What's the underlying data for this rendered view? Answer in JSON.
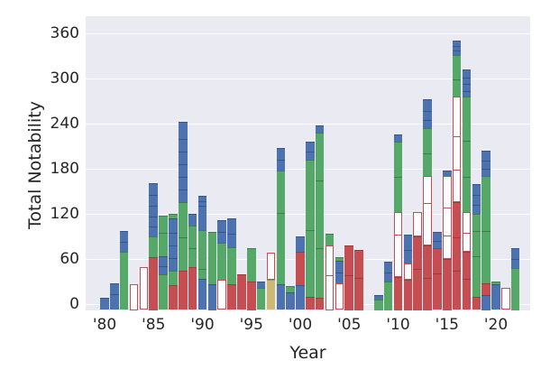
{
  "figure": {
    "xlabel": "Year",
    "ylabel": "Total Notability",
    "background": "#eaeaf2",
    "gridcolor": "#ffffff"
  },
  "palette": {
    "blue": {
      "fill": "#4c72b0",
      "edge": "#39568a"
    },
    "green": {
      "fill": "#55a868",
      "edge": "#40804f"
    },
    "red": {
      "fill": "#c44e52",
      "edge": "#993d40"
    },
    "tan": {
      "fill": "#ccb974",
      "edge": "#a29257"
    },
    "hollow": {
      "fill": "#fdfdff",
      "edge": "#c44e52"
    }
  },
  "chart_data": {
    "type": "bar",
    "subtype": "stacked, segments colored by category (blue / green / red solid, red-outlined hollow, tan)",
    "title": "",
    "xlabel": "Year",
    "ylabel": "Total Notability",
    "ylim": [
      0,
      380
    ],
    "yticks": [
      0,
      60,
      120,
      180,
      240,
      300,
      360
    ],
    "xtick_labels": [
      "'80",
      "'85",
      "'90",
      "'95",
      "'00",
      "'05",
      "'10",
      "'15",
      "'20"
    ],
    "xtick_years": [
      1980,
      1985,
      1990,
      1995,
      2000,
      2005,
      2010,
      2015,
      2020
    ],
    "legend": "none",
    "grid": true,
    "years": [
      {
        "year": 1980,
        "total": 8,
        "segments": [
          {
            "c": "blue",
            "a": 0,
            "b": 8
          }
        ]
      },
      {
        "year": 1981,
        "total": 28,
        "segments": [
          {
            "c": "blue",
            "a": 0,
            "b": 28,
            "d": [
              14
            ]
          }
        ]
      },
      {
        "year": 1982,
        "total": 97,
        "segments": [
          {
            "c": "green",
            "a": 0,
            "b": 70
          },
          {
            "c": "blue",
            "a": 70,
            "b": 97,
            "d": [
              84
            ]
          }
        ]
      },
      {
        "year": 1983,
        "total": 27,
        "segments": [
          {
            "c": "hollow",
            "a": 0,
            "b": 27
          }
        ]
      },
      {
        "year": 1984,
        "total": 49,
        "segments": [
          {
            "c": "hollow",
            "a": 0,
            "b": 49
          }
        ]
      },
      {
        "year": 1985,
        "total": 161,
        "segments": [
          {
            "c": "red",
            "a": 0,
            "b": 63
          },
          {
            "c": "green",
            "a": 63,
            "b": 90
          },
          {
            "c": "blue",
            "a": 90,
            "b": 161,
            "d": [
              104,
              118,
              132,
              146
            ]
          }
        ]
      },
      {
        "year": 1986,
        "total": 118,
        "segments": [
          {
            "c": "green",
            "a": 0,
            "b": 40
          },
          {
            "c": "blue",
            "a": 40,
            "b": 64,
            "d": [
              52
            ]
          },
          {
            "c": "green",
            "a": 64,
            "b": 118,
            "d": [
              96
            ]
          }
        ]
      },
      {
        "year": 1987,
        "total": 120,
        "segments": [
          {
            "c": "red",
            "a": 0,
            "b": 25
          },
          {
            "c": "green",
            "a": 25,
            "b": 45
          },
          {
            "c": "blue",
            "a": 45,
            "b": 114,
            "d": [
              62,
              79,
              96
            ]
          },
          {
            "c": "green",
            "a": 114,
            "b": 120
          }
        ]
      },
      {
        "year": 1988,
        "total": 242,
        "segments": [
          {
            "c": "red",
            "a": 0,
            "b": 44
          },
          {
            "c": "green",
            "a": 44,
            "b": 136,
            "d": [
              90
            ]
          },
          {
            "c": "blue",
            "a": 136,
            "b": 242,
            "d": [
              153,
              170,
              187,
              204,
              221
            ]
          }
        ]
      },
      {
        "year": 1989,
        "total": 120,
        "segments": [
          {
            "c": "red",
            "a": 0,
            "b": 49
          },
          {
            "c": "green",
            "a": 49,
            "b": 104,
            "d": [
              76
            ]
          },
          {
            "c": "blue",
            "a": 104,
            "b": 120
          }
        ]
      },
      {
        "year": 1990,
        "total": 144,
        "segments": [
          {
            "c": "blue",
            "a": 0,
            "b": 34
          },
          {
            "c": "green",
            "a": 34,
            "b": 98,
            "d": [
              48
            ]
          },
          {
            "c": "blue",
            "a": 98,
            "b": 144,
            "d": [
              132,
              138
            ]
          }
        ]
      },
      {
        "year": 1991,
        "total": 96,
        "segments": [
          {
            "c": "blue",
            "a": 0,
            "b": 27
          },
          {
            "c": "green",
            "a": 27,
            "b": 96
          }
        ]
      },
      {
        "year": 1992,
        "total": 112,
        "segments": [
          {
            "c": "hollow",
            "a": 0,
            "b": 32
          },
          {
            "c": "green",
            "a": 32,
            "b": 82
          },
          {
            "c": "blue",
            "a": 82,
            "b": 112,
            "d": [
              97
            ]
          }
        ]
      },
      {
        "year": 1993,
        "total": 114,
        "segments": [
          {
            "c": "red",
            "a": 0,
            "b": 26
          },
          {
            "c": "green",
            "a": 26,
            "b": 76
          },
          {
            "c": "blue",
            "a": 76,
            "b": 114,
            "d": [
              95
            ]
          }
        ]
      },
      {
        "year": 1994,
        "total": 40,
        "segments": [
          {
            "c": "red",
            "a": 0,
            "b": 40
          }
        ]
      },
      {
        "year": 1995,
        "total": 75,
        "segments": [
          {
            "c": "red",
            "a": 0,
            "b": 30
          },
          {
            "c": "green",
            "a": 30,
            "b": 75
          }
        ]
      },
      {
        "year": 1996,
        "total": 30,
        "segments": [
          {
            "c": "green",
            "a": 0,
            "b": 22
          },
          {
            "c": "blue",
            "a": 22,
            "b": 30
          }
        ]
      },
      {
        "year": 1997,
        "total": 68,
        "segments": [
          {
            "c": "tan",
            "a": 0,
            "b": 32
          },
          {
            "c": "hollow",
            "a": 32,
            "b": 68
          }
        ]
      },
      {
        "year": 1998,
        "total": 208,
        "segments": [
          {
            "c": "blue",
            "a": 0,
            "b": 26
          },
          {
            "c": "green",
            "a": 26,
            "b": 178,
            "d": [
              122
            ]
          },
          {
            "c": "blue",
            "a": 178,
            "b": 208,
            "d": [
              193
            ]
          }
        ]
      },
      {
        "year": 1999,
        "total": 24,
        "segments": [
          {
            "c": "blue",
            "a": 0,
            "b": 16
          },
          {
            "c": "green",
            "a": 16,
            "b": 24
          }
        ]
      },
      {
        "year": 2000,
        "total": 90,
        "segments": [
          {
            "c": "blue",
            "a": 0,
            "b": 25
          },
          {
            "c": "red",
            "a": 25,
            "b": 70
          },
          {
            "c": "blue",
            "a": 70,
            "b": 90
          }
        ]
      },
      {
        "year": 2001,
        "total": 216,
        "segments": [
          {
            "c": "red",
            "a": 0,
            "b": 10
          },
          {
            "c": "green",
            "a": 10,
            "b": 192,
            "d": [
              100
            ]
          },
          {
            "c": "blue",
            "a": 192,
            "b": 216,
            "d": [
              204
            ]
          }
        ]
      },
      {
        "year": 2002,
        "total": 238,
        "segments": [
          {
            "c": "red",
            "a": 0,
            "b": 8
          },
          {
            "c": "green",
            "a": 8,
            "b": 228,
            "d": [
              76,
              166
            ]
          },
          {
            "c": "blue",
            "a": 228,
            "b": 238
          }
        ]
      },
      {
        "year": 2003,
        "total": 94,
        "segments": [
          {
            "c": "hollow",
            "a": 0,
            "b": 78,
            "d": [
              40
            ]
          },
          {
            "c": "green",
            "a": 78,
            "b": 94
          }
        ]
      },
      {
        "year": 2004,
        "total": 62,
        "segments": [
          {
            "c": "hollow",
            "a": 0,
            "b": 28
          },
          {
            "c": "blue",
            "a": 28,
            "b": 58,
            "d": [
              43
            ]
          },
          {
            "c": "green",
            "a": 58,
            "b": 62
          }
        ]
      },
      {
        "year": 2005,
        "total": 78,
        "segments": [
          {
            "c": "red",
            "a": 0,
            "b": 78,
            "d": [
              40
            ]
          }
        ]
      },
      {
        "year": 2006,
        "total": 72,
        "segments": [
          {
            "c": "red",
            "a": 0,
            "b": 72,
            "d": [
              36
            ]
          }
        ]
      },
      {
        "year": 2007,
        "total": 0,
        "segments": []
      },
      {
        "year": 2008,
        "total": 12,
        "segments": [
          {
            "c": "green",
            "a": 0,
            "b": 6
          },
          {
            "c": "blue",
            "a": 6,
            "b": 12
          }
        ]
      },
      {
        "year": 2009,
        "total": 56,
        "segments": [
          {
            "c": "green",
            "a": 0,
            "b": 30
          },
          {
            "c": "blue",
            "a": 30,
            "b": 56,
            "d": [
              43
            ]
          }
        ]
      },
      {
        "year": 2010,
        "total": 226,
        "segments": [
          {
            "c": "red",
            "a": 0,
            "b": 36
          },
          {
            "c": "hollow",
            "a": 36,
            "b": 122,
            "d": [
              94
            ]
          },
          {
            "c": "green",
            "a": 122,
            "b": 216,
            "d": [
              170
            ]
          },
          {
            "c": "blue",
            "a": 216,
            "b": 226
          }
        ]
      },
      {
        "year": 2011,
        "total": 93,
        "segments": [
          {
            "c": "red",
            "a": 0,
            "b": 33
          },
          {
            "c": "hollow",
            "a": 33,
            "b": 54
          },
          {
            "c": "blue",
            "a": 54,
            "b": 93,
            "d": [
              73
            ]
          }
        ]
      },
      {
        "year": 2012,
        "total": 122,
        "segments": [
          {
            "c": "red",
            "a": 0,
            "b": 90,
            "d": [
              48
            ]
          },
          {
            "c": "hollow",
            "a": 90,
            "b": 122
          }
        ]
      },
      {
        "year": 2013,
        "total": 272,
        "segments": [
          {
            "c": "red",
            "a": 0,
            "b": 78,
            "d": [
              36
            ]
          },
          {
            "c": "hollow",
            "a": 78,
            "b": 170,
            "d": [
              136
            ]
          },
          {
            "c": "green",
            "a": 170,
            "b": 234,
            "d": [
              202
            ]
          },
          {
            "c": "blue",
            "a": 234,
            "b": 272,
            "d": [
              246,
              258
            ]
          }
        ]
      },
      {
        "year": 2014,
        "total": 96,
        "segments": [
          {
            "c": "red",
            "a": 0,
            "b": 74,
            "d": [
              42
            ]
          },
          {
            "c": "blue",
            "a": 74,
            "b": 96,
            "d": [
              85
            ]
          }
        ]
      },
      {
        "year": 2015,
        "total": 178,
        "segments": [
          {
            "c": "red",
            "a": 0,
            "b": 60
          },
          {
            "c": "hollow",
            "a": 60,
            "b": 170,
            "d": [
              92,
              130
            ]
          },
          {
            "c": "blue",
            "a": 170,
            "b": 178
          }
        ]
      },
      {
        "year": 2016,
        "total": 351,
        "segments": [
          {
            "c": "red",
            "a": 0,
            "b": 136,
            "d": [
              46,
              90
            ]
          },
          {
            "c": "hollow",
            "a": 136,
            "b": 276,
            "d": [
              180,
              225
            ]
          },
          {
            "c": "green",
            "a": 276,
            "b": 331,
            "d": [
              300
            ]
          },
          {
            "c": "blue",
            "a": 331,
            "b": 351,
            "d": [
              338,
              344
            ]
          }
        ]
      },
      {
        "year": 2017,
        "total": 312,
        "segments": [
          {
            "c": "red",
            "a": 0,
            "b": 70,
            "d": [
              35
            ]
          },
          {
            "c": "hollow",
            "a": 70,
            "b": 122,
            "d": [
              96
            ]
          },
          {
            "c": "green",
            "a": 122,
            "b": 276,
            "d": [
              170,
              218
            ]
          },
          {
            "c": "blue",
            "a": 276,
            "b": 312,
            "d": [
              285,
              294,
              303
            ]
          }
        ]
      },
      {
        "year": 2018,
        "total": 160,
        "segments": [
          {
            "c": "red",
            "a": 0,
            "b": 10
          },
          {
            "c": "green",
            "a": 10,
            "b": 120,
            "d": [
              65,
              98
            ]
          },
          {
            "c": "blue",
            "a": 120,
            "b": 160,
            "d": [
              133,
              146
            ]
          }
        ]
      },
      {
        "year": 2019,
        "total": 204,
        "segments": [
          {
            "c": "blue",
            "a": 0,
            "b": 12
          },
          {
            "c": "red",
            "a": 12,
            "b": 28
          },
          {
            "c": "green",
            "a": 28,
            "b": 170,
            "d": [
              98
            ]
          },
          {
            "c": "blue",
            "a": 170,
            "b": 204,
            "d": [
              181,
              192
            ]
          }
        ]
      },
      {
        "year": 2020,
        "total": 30,
        "segments": [
          {
            "c": "blue",
            "a": 0,
            "b": 26
          },
          {
            "c": "green",
            "a": 26,
            "b": 30
          }
        ]
      },
      {
        "year": 2021,
        "total": 22,
        "segments": [
          {
            "c": "hollow",
            "a": 0,
            "b": 22
          }
        ]
      },
      {
        "year": 2022,
        "total": 74,
        "segments": [
          {
            "c": "green",
            "a": 0,
            "b": 48
          },
          {
            "c": "blue",
            "a": 48,
            "b": 74,
            "d": [
              61
            ]
          }
        ]
      }
    ]
  }
}
